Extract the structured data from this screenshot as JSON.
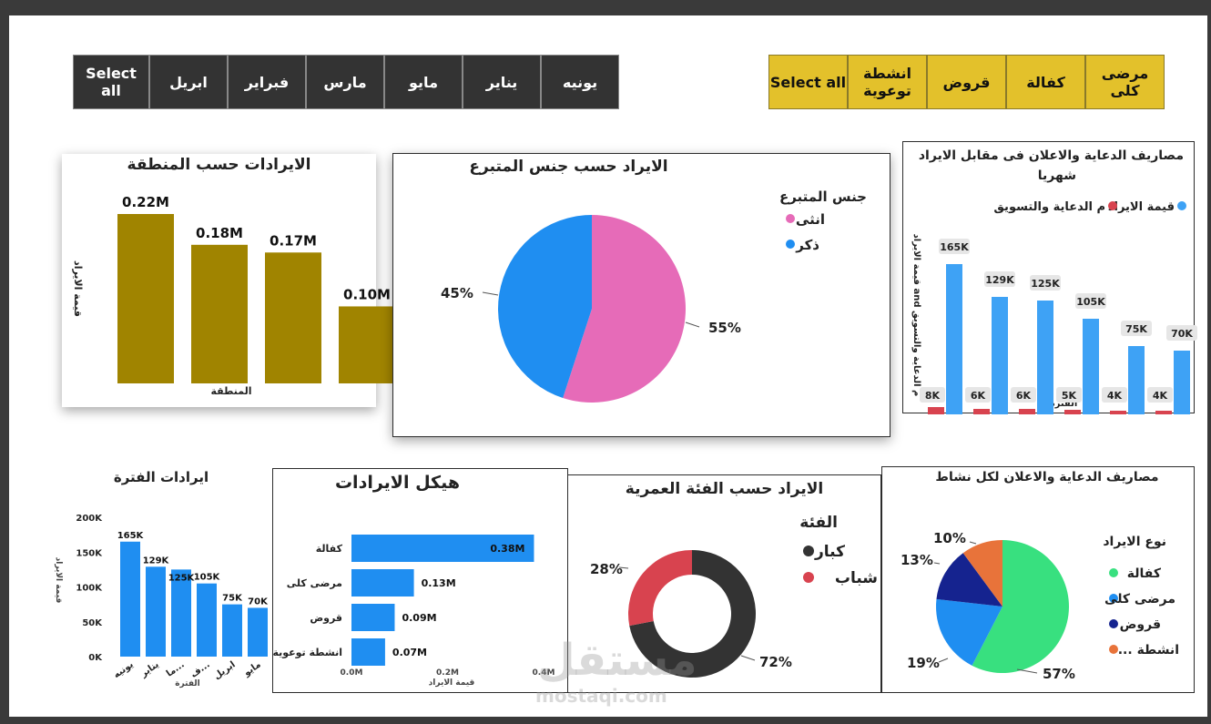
{
  "month_slicer": {
    "items": [
      "Select all",
      "ابريل",
      "فبراير",
      "مارس",
      "مايو",
      "يناير",
      "يونيه"
    ]
  },
  "activity_slicer": {
    "items": [
      "Select all",
      "انشطة توعوية",
      "قروض",
      "كفالة",
      "مرضى كلى"
    ]
  },
  "region_chart": {
    "title": "الايرادات حسب المنطقة",
    "ylabel": "قيمة الايراد",
    "xlabel": "المنطقة",
    "bar_color": "#a08400"
  },
  "gender_chart": {
    "title": "الايراد حسب جنس المتبرع",
    "legend_title": "جنس المتبرع",
    "colors": {
      "female": "#e66bb8",
      "male": "#1f8ef1"
    }
  },
  "ads_chart": {
    "title": "مصاريف الدعاية والاعلان فى مقابل الايراد شهريا",
    "legend": [
      "قيمة الايراد",
      "م الدعاية والتسويق"
    ],
    "ylabel": "قيمة الايراد and م الدعاية والتسويق",
    "xlabel": "الفتره",
    "colors": {
      "revenue": "#3ea2f5",
      "ads": "#d8434f"
    }
  },
  "period_chart": {
    "title": "ايرادات الفترة",
    "ylabel": "قيمة الايراد",
    "xlabel": "الفترة",
    "color": "#1f8ef1"
  },
  "structure_chart": {
    "title": "هيكل الايرادات",
    "xlabel": "قيمة الايراد",
    "color": "#1f8ef1"
  },
  "age_chart": {
    "title": "الايراد حسب الفئة العمرية",
    "legend_title": "الفئة",
    "colors": {
      "adults": "#333333",
      "youth": "#d8434f"
    }
  },
  "activity_ads_chart": {
    "title": "مصاريف الدعاية والاعلان لكل نشاط",
    "legend_title": "نوع الايراد",
    "colors": [
      "#38e07f",
      "#1f8ef1",
      "#15238f",
      "#e8733a"
    ]
  },
  "watermark": {
    "arabic": "مستقل",
    "latin": "mostaqi.com"
  },
  "chart_data": [
    {
      "type": "bar",
      "title": "الايرادات حسب المنطقة",
      "xlabel": "المنطقة",
      "ylabel": "قيمة الايراد",
      "categories": [
        "",
        "",
        "",
        ""
      ],
      "values": [
        0.22,
        0.18,
        0.17,
        0.1
      ],
      "labels": [
        "0.22M",
        "0.18M",
        "0.17M",
        "0.10M"
      ],
      "ylim": [
        0,
        0.22
      ]
    },
    {
      "type": "pie",
      "title": "الايراد حسب جنس المتبرع",
      "legend_title": "جنس المتبرع",
      "categories": [
        "انثى",
        "ذكر"
      ],
      "values": [
        55,
        45
      ],
      "labels": [
        "55%",
        "45%"
      ]
    },
    {
      "type": "bar",
      "title": "مصاريف الدعاية والاعلان فى مقابل الايراد شهريا",
      "xlabel": "الفتره",
      "categories": [
        "",
        "",
        "",
        "",
        "",
        ""
      ],
      "series": [
        {
          "name": "قيمة الايراد",
          "values": [
            165,
            129,
            125,
            105,
            75,
            70
          ],
          "labels": [
            "165K",
            "129K",
            "125K",
            "105K",
            "75K",
            "70K"
          ]
        },
        {
          "name": "م الدعاية والتسويق",
          "values": [
            8,
            6,
            6,
            5,
            4,
            4
          ],
          "labels": [
            "8K",
            "6K",
            "6K",
            "5K",
            "4K",
            "4K"
          ]
        }
      ],
      "ylim": [
        0,
        165
      ]
    },
    {
      "type": "bar",
      "title": "ايرادات الفترة",
      "xlabel": "الفترة",
      "ylabel": "قيمة الايراد",
      "categories": [
        "يونيه",
        "يناير",
        "ما...",
        "ف...",
        "ابريل",
        "مايو"
      ],
      "values": [
        165,
        129,
        125,
        105,
        75,
        70
      ],
      "labels": [
        "165K",
        "129K",
        "125K",
        "105K",
        "75K",
        "70K"
      ],
      "yticks": [
        "0K",
        "50K",
        "100K",
        "150K",
        "200K"
      ],
      "ylim": [
        0,
        200
      ]
    },
    {
      "type": "bar",
      "orientation": "horizontal",
      "title": "هيكل الايرادات",
      "xlabel": "قيمة الايراد",
      "categories": [
        "كفالة",
        "مرضى كلى",
        "قروض",
        "انشطة توعوية"
      ],
      "values": [
        0.38,
        0.13,
        0.09,
        0.07
      ],
      "labels": [
        "0.38M",
        "0.13M",
        "0.09M",
        "0.07M"
      ],
      "xticks": [
        "0.0M",
        "0.2M",
        "0.4M"
      ],
      "xlim": [
        0,
        0.4
      ]
    },
    {
      "type": "pie",
      "subtype": "donut",
      "title": "الايراد حسب الفئة العمرية",
      "legend_title": "الفئة",
      "categories": [
        "كبار",
        "شباب"
      ],
      "values": [
        72,
        28
      ],
      "labels": [
        "72%",
        "28%"
      ]
    },
    {
      "type": "pie",
      "title": "مصاريف الدعاية والاعلان لكل نشاط",
      "legend_title": "نوع الايراد",
      "categories": [
        "كفالة",
        "مرضى كلى",
        "قروض",
        "... انشطة"
      ],
      "values": [
        57,
        19,
        13,
        10
      ],
      "labels": [
        "57%",
        "19%",
        "13%",
        "10%"
      ]
    }
  ]
}
